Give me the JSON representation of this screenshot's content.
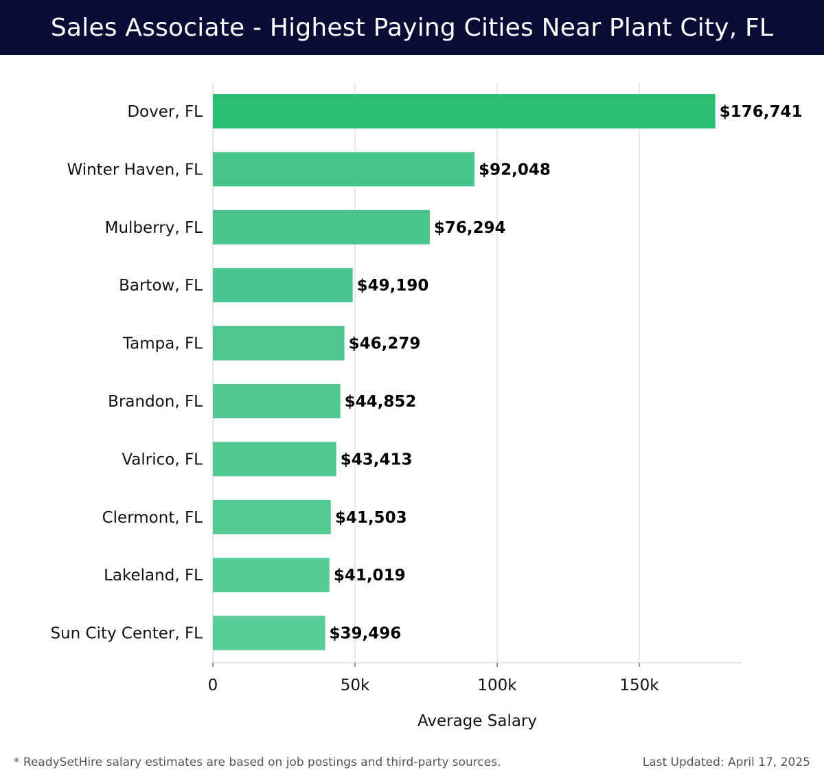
{
  "header": {
    "title": "Sales Associate - Highest Paying Cities Near Plant City, FL"
  },
  "chart_data": {
    "type": "bar",
    "orientation": "horizontal",
    "categories": [
      "Dover, FL",
      "Winter Haven, FL",
      "Mulberry, FL",
      "Bartow, FL",
      "Tampa, FL",
      "Brandon, FL",
      "Valrico, FL",
      "Clermont, FL",
      "Lakeland, FL",
      "Sun City Center, FL"
    ],
    "values": [
      176741,
      92048,
      76294,
      49190,
      46279,
      44852,
      43413,
      41503,
      41019,
      39496
    ],
    "value_labels": [
      "$176,741",
      "$92,048",
      "$76,294",
      "$49,190",
      "$46,279",
      "$44,852",
      "$43,413",
      "$41,503",
      "$41,019",
      "$39,496"
    ],
    "xlabel": "Average Salary",
    "xlim": [
      0,
      186000
    ],
    "xticks": [
      0,
      50000,
      100000,
      150000
    ],
    "xtick_labels": [
      "0",
      "50k",
      "100k",
      "150k"
    ],
    "grid": true,
    "colors": {
      "top_bar": "#2bbf76",
      "bar_gradient_start": "#47c38c",
      "bar_gradient_end": "#58cc96",
      "grid": "#e3e3e3",
      "axis": "#cccccc"
    }
  },
  "footer": {
    "note": "* ReadySetHire salary estimates are based on job postings and third-party sources.",
    "updated": "Last Updated: April 17, 2025"
  }
}
